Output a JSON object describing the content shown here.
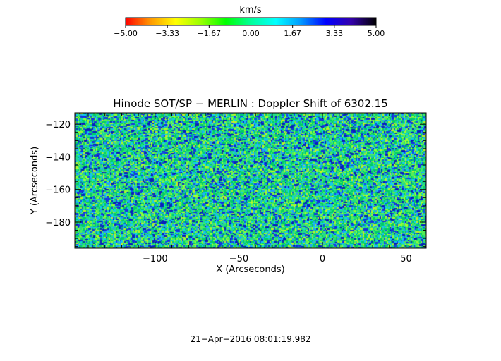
{
  "colorbar": {
    "unit": "km/s",
    "ticks": [
      "−5.00",
      "−3.33",
      "−1.67",
      "0.00",
      "1.67",
      "3.33",
      "5.00"
    ],
    "range": [
      -5,
      5
    ],
    "colors": [
      "#ff0000",
      "#ff9900",
      "#ffff00",
      "#99ff00",
      "#00ff00",
      "#00ff99",
      "#00ffff",
      "#0099ff",
      "#0000ff",
      "#3300aa",
      "#000000"
    ]
  },
  "chart_data": {
    "type": "heatmap",
    "title": "Hinode SOT/SP − MERLIN : Doppler Shift of 6302.15",
    "xlabel": "X (Arcseconds)",
    "ylabel": "Y (Arcseconds)",
    "xlim": [
      -148,
      62
    ],
    "ylim": [
      -196,
      -113
    ],
    "x_ticks": [
      -100,
      -50,
      0,
      50
    ],
    "x_tick_labels": [
      "−100",
      "−50",
      "0",
      "50"
    ],
    "y_ticks": [
      -120,
      -140,
      -160,
      -180
    ],
    "y_tick_labels": [
      "−120",
      "−140",
      "−160",
      "−180"
    ],
    "value_range": [
      -5,
      5
    ],
    "palette": [
      "#00cc66",
      "#22dd88",
      "#55ee55",
      "#99ff33",
      "#ccee22",
      "#11ccee",
      "#2299ff",
      "#1144ee",
      "#0a1fbb"
    ],
    "palette_weights": [
      22,
      18,
      14,
      10,
      4,
      12,
      8,
      8,
      4
    ]
  },
  "footer": {
    "timestamp": "21−Apr−2016 08:01:19.982"
  }
}
